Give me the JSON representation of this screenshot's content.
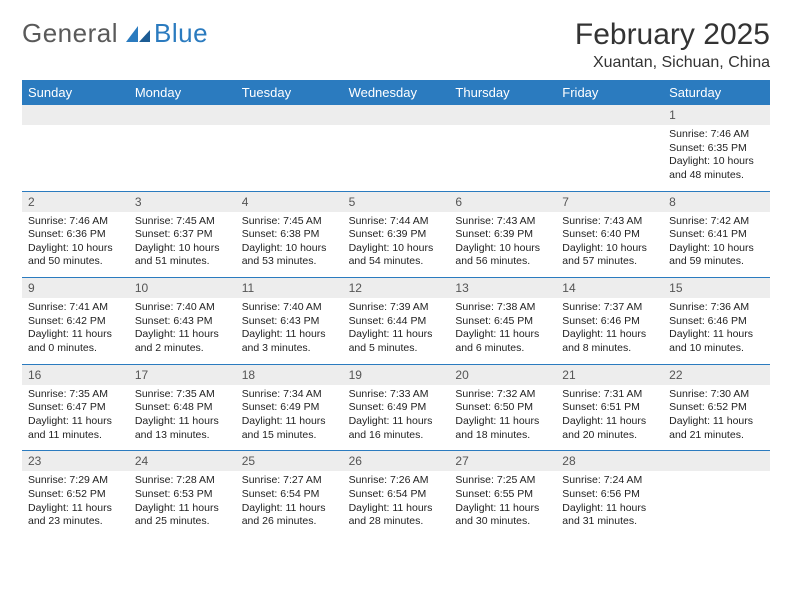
{
  "logo": {
    "text1": "General",
    "text2": "Blue"
  },
  "header": {
    "month_title": "February 2025",
    "location": "Xuantan, Sichuan, China"
  },
  "colors": {
    "header_bg": "#2b7bbf",
    "header_fg": "#ffffff",
    "daynum_bg": "#ededed",
    "text": "#222222",
    "row_border": "#2b7bbf"
  },
  "calendar": {
    "days_of_week": [
      "Sunday",
      "Monday",
      "Tuesday",
      "Wednesday",
      "Thursday",
      "Friday",
      "Saturday"
    ],
    "first_day_index": 6,
    "days": [
      {
        "n": 1,
        "sunrise": "7:46 AM",
        "sunset": "6:35 PM",
        "daylight": "10 hours and 48 minutes."
      },
      {
        "n": 2,
        "sunrise": "7:46 AM",
        "sunset": "6:36 PM",
        "daylight": "10 hours and 50 minutes."
      },
      {
        "n": 3,
        "sunrise": "7:45 AM",
        "sunset": "6:37 PM",
        "daylight": "10 hours and 51 minutes."
      },
      {
        "n": 4,
        "sunrise": "7:45 AM",
        "sunset": "6:38 PM",
        "daylight": "10 hours and 53 minutes."
      },
      {
        "n": 5,
        "sunrise": "7:44 AM",
        "sunset": "6:39 PM",
        "daylight": "10 hours and 54 minutes."
      },
      {
        "n": 6,
        "sunrise": "7:43 AM",
        "sunset": "6:39 PM",
        "daylight": "10 hours and 56 minutes."
      },
      {
        "n": 7,
        "sunrise": "7:43 AM",
        "sunset": "6:40 PM",
        "daylight": "10 hours and 57 minutes."
      },
      {
        "n": 8,
        "sunrise": "7:42 AM",
        "sunset": "6:41 PM",
        "daylight": "10 hours and 59 minutes."
      },
      {
        "n": 9,
        "sunrise": "7:41 AM",
        "sunset": "6:42 PM",
        "daylight": "11 hours and 0 minutes."
      },
      {
        "n": 10,
        "sunrise": "7:40 AM",
        "sunset": "6:43 PM",
        "daylight": "11 hours and 2 minutes."
      },
      {
        "n": 11,
        "sunrise": "7:40 AM",
        "sunset": "6:43 PM",
        "daylight": "11 hours and 3 minutes."
      },
      {
        "n": 12,
        "sunrise": "7:39 AM",
        "sunset": "6:44 PM",
        "daylight": "11 hours and 5 minutes."
      },
      {
        "n": 13,
        "sunrise": "7:38 AM",
        "sunset": "6:45 PM",
        "daylight": "11 hours and 6 minutes."
      },
      {
        "n": 14,
        "sunrise": "7:37 AM",
        "sunset": "6:46 PM",
        "daylight": "11 hours and 8 minutes."
      },
      {
        "n": 15,
        "sunrise": "7:36 AM",
        "sunset": "6:46 PM",
        "daylight": "11 hours and 10 minutes."
      },
      {
        "n": 16,
        "sunrise": "7:35 AM",
        "sunset": "6:47 PM",
        "daylight": "11 hours and 11 minutes."
      },
      {
        "n": 17,
        "sunrise": "7:35 AM",
        "sunset": "6:48 PM",
        "daylight": "11 hours and 13 minutes."
      },
      {
        "n": 18,
        "sunrise": "7:34 AM",
        "sunset": "6:49 PM",
        "daylight": "11 hours and 15 minutes."
      },
      {
        "n": 19,
        "sunrise": "7:33 AM",
        "sunset": "6:49 PM",
        "daylight": "11 hours and 16 minutes."
      },
      {
        "n": 20,
        "sunrise": "7:32 AM",
        "sunset": "6:50 PM",
        "daylight": "11 hours and 18 minutes."
      },
      {
        "n": 21,
        "sunrise": "7:31 AM",
        "sunset": "6:51 PM",
        "daylight": "11 hours and 20 minutes."
      },
      {
        "n": 22,
        "sunrise": "7:30 AM",
        "sunset": "6:52 PM",
        "daylight": "11 hours and 21 minutes."
      },
      {
        "n": 23,
        "sunrise": "7:29 AM",
        "sunset": "6:52 PM",
        "daylight": "11 hours and 23 minutes."
      },
      {
        "n": 24,
        "sunrise": "7:28 AM",
        "sunset": "6:53 PM",
        "daylight": "11 hours and 25 minutes."
      },
      {
        "n": 25,
        "sunrise": "7:27 AM",
        "sunset": "6:54 PM",
        "daylight": "11 hours and 26 minutes."
      },
      {
        "n": 26,
        "sunrise": "7:26 AM",
        "sunset": "6:54 PM",
        "daylight": "11 hours and 28 minutes."
      },
      {
        "n": 27,
        "sunrise": "7:25 AM",
        "sunset": "6:55 PM",
        "daylight": "11 hours and 30 minutes."
      },
      {
        "n": 28,
        "sunrise": "7:24 AM",
        "sunset": "6:56 PM",
        "daylight": "11 hours and 31 minutes."
      }
    ],
    "labels": {
      "sunrise": "Sunrise:",
      "sunset": "Sunset:",
      "daylight": "Daylight:"
    }
  }
}
